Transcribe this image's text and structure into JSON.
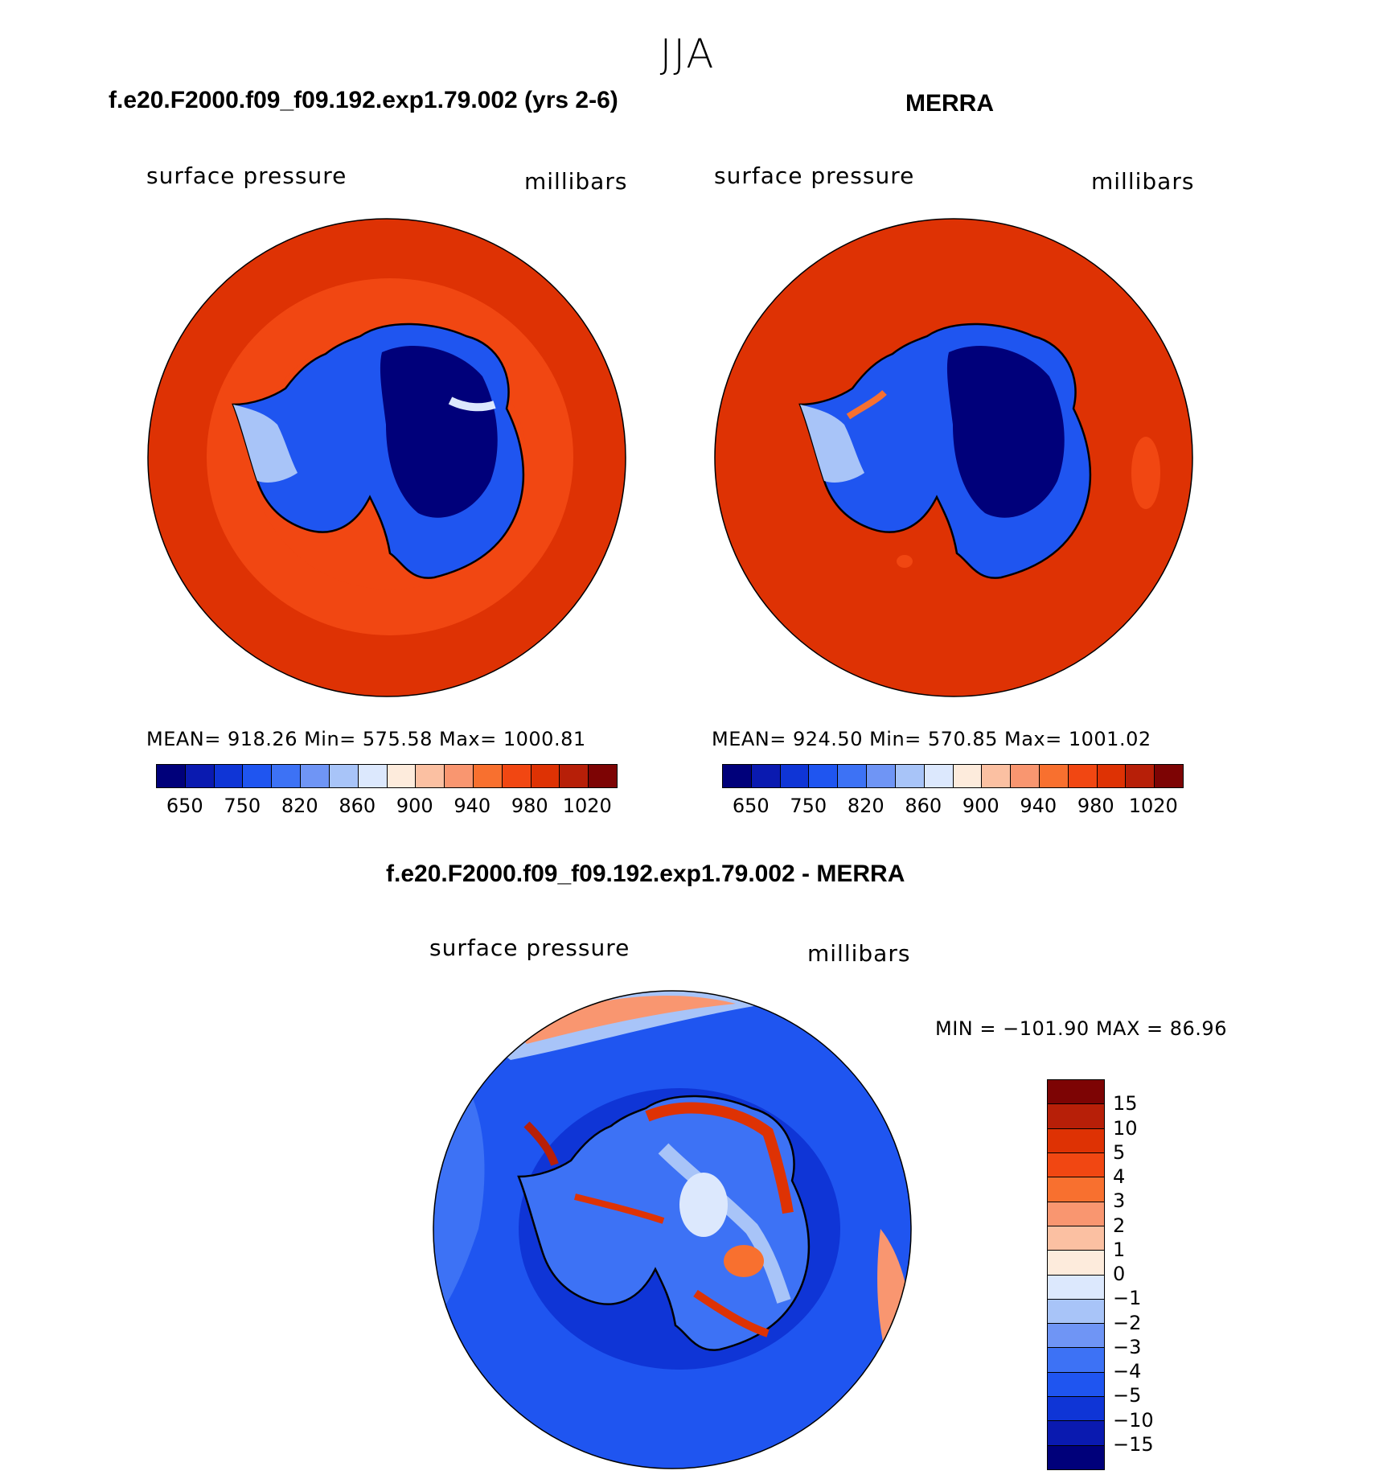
{
  "season": "JJA",
  "panels": [
    {
      "title": "f.e20.F2000.f09_f09.192.exp1.79.002 (yrs 2-6)",
      "variable": "surface pressure",
      "units": "millibars",
      "stats": {
        "mean": "918.26",
        "min": "575.58",
        "max": "1000.81"
      },
      "stats_text": "MEAN= 918.26   Min= 575.58   Max= 1000.81"
    },
    {
      "title": "MERRA",
      "variable": "surface pressure",
      "units": "millibars",
      "stats": {
        "mean": "924.50",
        "min": "570.85",
        "max": "1001.02"
      },
      "stats_text": "MEAN= 924.50   Min= 570.85   Max= 1001.02"
    }
  ],
  "colorbar_pressure": {
    "levels": [
      "650",
      "750",
      "820",
      "860",
      "900",
      "940",
      "980",
      "1020"
    ],
    "colors": [
      "#00007a",
      "#0a1ab0",
      "#0f35d6",
      "#1f55f0",
      "#3d72f5",
      "#6f95f5",
      "#a8c4f8",
      "#dce8fd",
      "#fdebdc",
      "#fbc0a2",
      "#f99670",
      "#f8702f",
      "#f14712",
      "#de3204",
      "#b71f08",
      "#7d0404"
    ]
  },
  "difference": {
    "title": "f.e20.F2000.f09_f09.192.exp1.79.002 - MERRA",
    "variable": "surface pressure",
    "units": "millibars",
    "minmax_text": "MIN = −101.90 MAX =   86.96",
    "min": "-101.90",
    "max": "86.96",
    "levels": [
      "15",
      "10",
      "5",
      "4",
      "3",
      "2",
      "1",
      "0",
      "−1",
      "−2",
      "−3",
      "−4",
      "−5",
      "−10",
      "−15"
    ],
    "colors": [
      "#7d0404",
      "#b71f08",
      "#de3204",
      "#f14712",
      "#f8702f",
      "#f99670",
      "#fbc0a2",
      "#fdebdc",
      "#dce8fd",
      "#a8c4f8",
      "#6f95f5",
      "#3d72f5",
      "#1f55f0",
      "#0f35d6",
      "#0a1ab0",
      "#00007a"
    ]
  },
  "chart_data": {
    "type": "heatmap",
    "description_fields": {
      "field": "surface pressure",
      "units": "millibars",
      "projection": "south polar stereographic"
    },
    "panels": [
      {
        "name": "f.e20.F2000.f09_f09.192.exp1.79.002 (yrs 2-6)",
        "mean": 918.26,
        "min": 575.58,
        "max": 1000.81
      },
      {
        "name": "MERRA",
        "mean": 924.5,
        "min": 570.85,
        "max": 1001.02
      },
      {
        "name": "f.e20.F2000.f09_f09.192.exp1.79.002 - MERRA",
        "min": -101.9,
        "max": 86.96
      }
    ],
    "pressure_levels": [
      650,
      750,
      820,
      860,
      900,
      940,
      980,
      1020
    ],
    "difference_levels": [
      15,
      10,
      5,
      4,
      3,
      2,
      1,
      0,
      -1,
      -2,
      -3,
      -4,
      -5,
      -10,
      -15
    ]
  }
}
